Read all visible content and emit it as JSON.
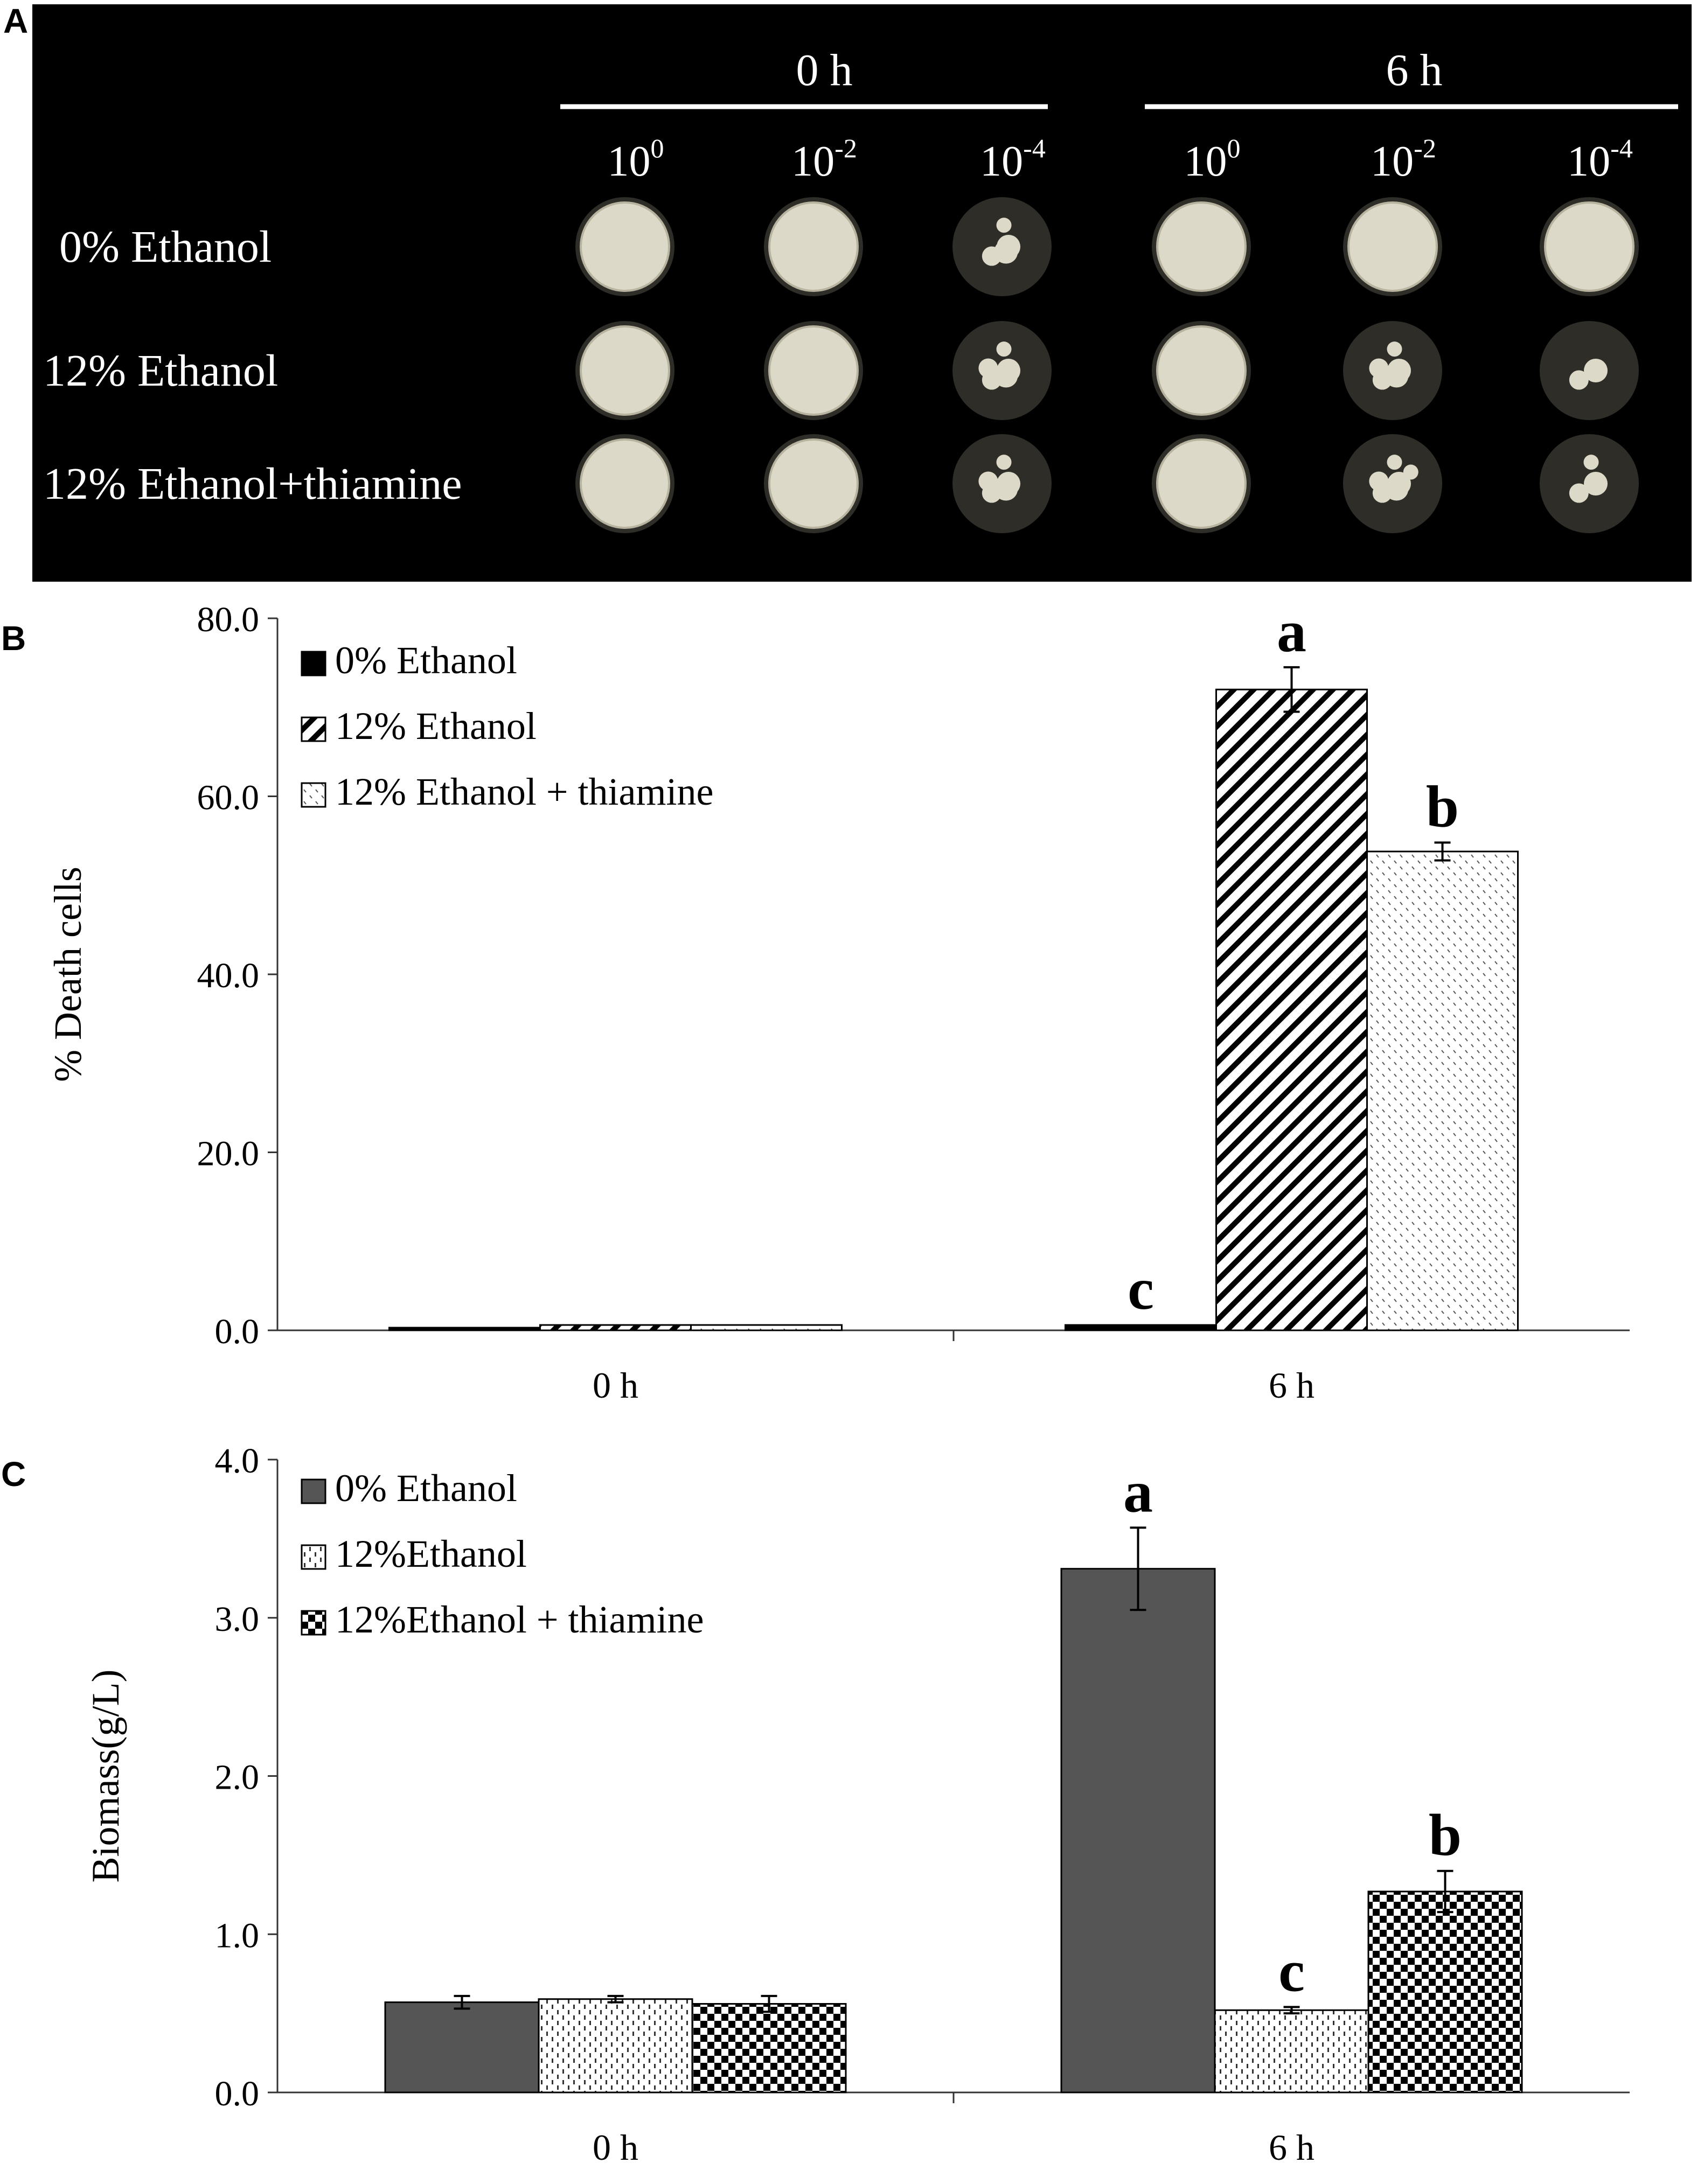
{
  "panel_a": {
    "letter": "A",
    "groups": [
      {
        "label": "0 h",
        "dilutions": [
          {
            "base": "10",
            "exp": "0"
          },
          {
            "base": "10",
            "exp": "-2"
          },
          {
            "base": "10",
            "exp": "-4"
          }
        ]
      },
      {
        "label": "6 h",
        "dilutions": [
          {
            "base": "10",
            "exp": "0"
          },
          {
            "base": "10",
            "exp": "-2"
          },
          {
            "base": "10",
            "exp": "-4"
          }
        ]
      }
    ],
    "rows": [
      "0% Ethanol",
      "12% Ethanol",
      "12% Ethanol+thiamine"
    ],
    "colors": {
      "background": "#000000",
      "text": "#ffffff",
      "plate": "#2e2d27",
      "colony": "#dcd9c8"
    }
  },
  "chart_data": [
    {
      "panel": "B",
      "type": "bar",
      "ylabel": "% Death cells",
      "xlabel": "",
      "ylim": [
        0,
        80
      ],
      "yticks": [
        "0.0",
        "20.0",
        "40.0",
        "60.0",
        "80.0"
      ],
      "categories": [
        "0 h",
        "6 h"
      ],
      "legend_position": "top-left",
      "series": [
        {
          "name": "0% Ethanol",
          "pattern": "solid-black",
          "values": [
            0.3,
            0.6
          ],
          "errors": [
            0,
            0
          ],
          "sig": [
            "",
            "c"
          ]
        },
        {
          "name": "12% Ethanol",
          "pattern": "diagonal",
          "values": [
            0.6,
            72.0
          ],
          "errors": [
            0,
            2.5
          ],
          "sig": [
            "",
            "a"
          ]
        },
        {
          "name": "12% Ethanol + thiamine",
          "pattern": "dots",
          "values": [
            0.6,
            53.8
          ],
          "errors": [
            0,
            1.0
          ],
          "sig": [
            "",
            "b"
          ]
        }
      ]
    },
    {
      "panel": "C",
      "type": "bar",
      "ylabel": "Biomass(g/L)",
      "xlabel": "",
      "ylim": [
        0,
        4
      ],
      "yticks": [
        "0.0",
        "1.0",
        "2.0",
        "3.0",
        "4.0"
      ],
      "categories": [
        "0 h",
        "6 h"
      ],
      "legend_position": "top-left",
      "series": [
        {
          "name": "0% Ethanol",
          "pattern": "solid-gray",
          "values": [
            0.57,
            3.31
          ],
          "errors": [
            0.04,
            0.26
          ],
          "sig": [
            "",
            "a"
          ]
        },
        {
          "name": "12%Ethanol",
          "pattern": "dashes",
          "values": [
            0.59,
            0.52
          ],
          "errors": [
            0.02,
            0.02
          ],
          "sig": [
            "",
            "c"
          ]
        },
        {
          "name": "12%Ethanol + thiamine",
          "pattern": "checker",
          "values": [
            0.56,
            1.27
          ],
          "errors": [
            0.05,
            0.13
          ],
          "sig": [
            "",
            "b"
          ]
        }
      ]
    }
  ]
}
